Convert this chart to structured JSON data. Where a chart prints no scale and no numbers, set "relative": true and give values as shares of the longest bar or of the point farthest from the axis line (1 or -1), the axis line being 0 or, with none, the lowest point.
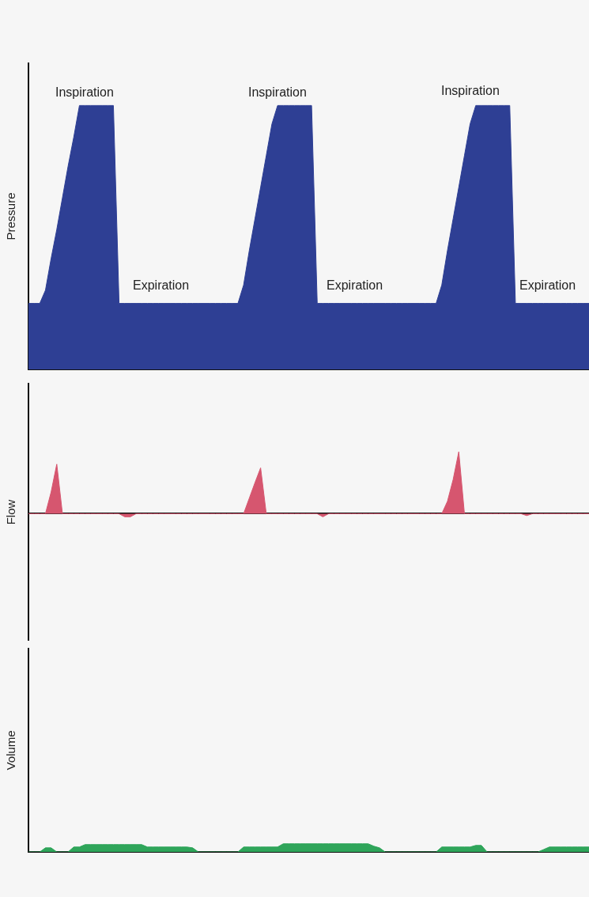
{
  "chart_data": [
    {
      "type": "area",
      "relative": true,
      "ylabel": "Pressure",
      "categories": [
        null,
        null,
        null,
        null,
        null,
        null,
        null,
        null,
        null,
        null,
        null,
        null,
        null,
        null,
        null,
        null,
        null,
        null,
        null,
        null,
        null,
        null,
        null,
        null,
        null,
        null,
        null,
        null,
        null,
        null,
        null,
        null,
        null,
        null,
        null,
        null,
        null,
        null,
        null,
        null,
        null,
        null,
        null,
        null,
        null,
        null,
        null,
        null,
        null,
        null,
        null,
        null,
        null,
        null,
        null,
        null,
        null,
        null,
        null,
        null,
        null,
        null,
        null,
        null,
        null,
        null,
        null,
        null,
        null,
        null,
        null,
        null,
        null,
        null,
        null,
        null,
        null,
        null,
        null,
        null,
        null,
        null,
        null,
        null,
        null,
        null,
        null,
        null,
        null,
        null,
        null,
        null,
        null,
        null,
        null,
        null,
        null,
        null,
        null,
        null
      ],
      "series": [
        {
          "color": "#2e3f94",
          "values": [
            0.25,
            0.25,
            0.25,
            0.3,
            0.42,
            0.53,
            0.65,
            0.77,
            0.88,
            1,
            1,
            1,
            1,
            1,
            1,
            1,
            0.25,
            0.25,
            0.25,
            0.25,
            0.25,
            0.25,
            0.25,
            0.25,
            0.25,
            0.25,
            0.25,
            0.25,
            0.25,
            0.25,
            0.25,
            0.25,
            0.25,
            0.25,
            0.25,
            0.25,
            0.25,
            0.25,
            0.32,
            0.45,
            0.57,
            0.69,
            0.81,
            0.93,
            1,
            1,
            1,
            1,
            1,
            1,
            1,
            0.25,
            0.25,
            0.25,
            0.25,
            0.25,
            0.25,
            0.25,
            0.25,
            0.25,
            0.25,
            0.25,
            0.25,
            0.25,
            0.25,
            0.25,
            0.25,
            0.25,
            0.25,
            0.25,
            0.25,
            0.25,
            0.25,
            0.32,
            0.45,
            0.57,
            0.69,
            0.81,
            0.93,
            1,
            1,
            1,
            1,
            1,
            1,
            1,
            0.25,
            0.25,
            0.25,
            0.25,
            0.25,
            0.25,
            0.25,
            0.25,
            0.25,
            0.25,
            0.25,
            0.25,
            0.25,
            0.25
          ]
        }
      ],
      "annotations": [
        "Inspiration",
        "Inspiration",
        "Inspiration",
        "Expiration",
        "Expiration",
        "Expiration"
      ]
    },
    {
      "type": "area",
      "relative": true,
      "ylabel": "Flow",
      "categories": [
        null,
        null,
        null,
        null,
        null,
        null,
        null,
        null,
        null,
        null,
        null,
        null,
        null,
        null,
        null,
        null,
        null,
        null,
        null,
        null,
        null,
        null,
        null,
        null,
        null,
        null,
        null,
        null,
        null,
        null,
        null,
        null,
        null,
        null,
        null,
        null,
        null,
        null,
        null,
        null,
        null,
        null,
        null,
        null,
        null,
        null,
        null,
        null,
        null,
        null,
        null,
        null,
        null,
        null,
        null,
        null,
        null,
        null,
        null,
        null,
        null,
        null,
        null,
        null,
        null,
        null,
        null,
        null,
        null,
        null,
        null,
        null,
        null,
        null,
        null,
        null,
        null,
        null,
        null,
        null,
        null,
        null,
        null,
        null,
        null,
        null,
        null,
        null,
        null,
        null,
        null,
        null,
        null,
        null,
        null,
        null,
        null,
        null,
        null,
        null
      ],
      "series": [
        {
          "color": "#d6566f",
          "values": [
            0,
            0,
            0,
            0,
            0.35,
            0.8,
            0,
            0,
            0,
            0,
            0,
            0,
            0,
            0,
            0,
            0,
            0,
            -0.05,
            -0.05,
            0,
            0,
            0,
            0,
            0,
            0,
            0,
            0,
            0,
            0,
            0,
            0,
            0,
            0,
            0,
            0,
            0,
            0,
            0,
            0,
            0.25,
            0.5,
            0.74,
            0,
            0,
            0,
            0,
            0,
            0,
            0,
            0,
            0,
            0,
            -0.05,
            0,
            0,
            0,
            0,
            0,
            0,
            0,
            0,
            0,
            0,
            0,
            0,
            0,
            0,
            0,
            0,
            0,
            0,
            0,
            0,
            0,
            0.2,
            0.55,
            1,
            0,
            0,
            0,
            0,
            0,
            0,
            0,
            0,
            0,
            0,
            0,
            -0.03,
            0,
            0,
            0,
            0,
            0,
            0,
            0,
            0,
            0,
            0,
            0
          ]
        }
      ]
    },
    {
      "type": "area",
      "relative": true,
      "ylabel": "Volume",
      "categories": [
        null,
        null,
        null,
        null,
        null,
        null,
        null,
        null,
        null,
        null,
        null,
        null,
        null,
        null,
        null,
        null,
        null,
        null,
        null,
        null,
        null,
        null,
        null,
        null,
        null,
        null,
        null,
        null,
        null,
        null,
        null,
        null,
        null,
        null,
        null,
        null,
        null,
        null,
        null,
        null,
        null,
        null,
        null,
        null,
        null,
        null,
        null,
        null,
        null,
        null,
        null,
        null,
        null,
        null,
        null,
        null,
        null,
        null,
        null,
        null,
        null,
        null,
        null,
        null,
        null,
        null,
        null,
        null,
        null,
        null,
        null,
        null,
        null,
        null,
        null,
        null,
        null,
        null,
        null,
        null,
        null,
        null,
        null,
        null,
        null,
        null,
        null,
        null,
        null,
        null,
        null,
        null,
        null,
        null,
        null,
        null,
        null,
        null,
        null,
        null
      ],
      "series": [
        {
          "color": "#2fa55a",
          "values": [
            0,
            0,
            0,
            0.5,
            0.5,
            0,
            0,
            0,
            0.6,
            0.6,
            0.9,
            0.9,
            0.9,
            0.9,
            0.9,
            0.9,
            0.9,
            0.9,
            0.9,
            0.9,
            0.9,
            0.6,
            0.6,
            0.6,
            0.6,
            0.6,
            0.6,
            0.6,
            0.6,
            0.5,
            0,
            0,
            0,
            0,
            0,
            0,
            0,
            0,
            0.6,
            0.6,
            0.6,
            0.6,
            0.6,
            0.6,
            0.6,
            1,
            1,
            1,
            1,
            1,
            1,
            1,
            1,
            1,
            1,
            1,
            1,
            1,
            1,
            1,
            1,
            0.7,
            0.5,
            0,
            0,
            0,
            0,
            0,
            0,
            0,
            0,
            0,
            0,
            0.6,
            0.6,
            0.6,
            0.6,
            0.6,
            0.6,
            0.8,
            0.8,
            0,
            0,
            0,
            0,
            0,
            0,
            0,
            0,
            0,
            0,
            0.3,
            0.6,
            0.6,
            0.6,
            0.6,
            0.6,
            0.6,
            0.6,
            0.6
          ]
        }
      ]
    }
  ]
}
